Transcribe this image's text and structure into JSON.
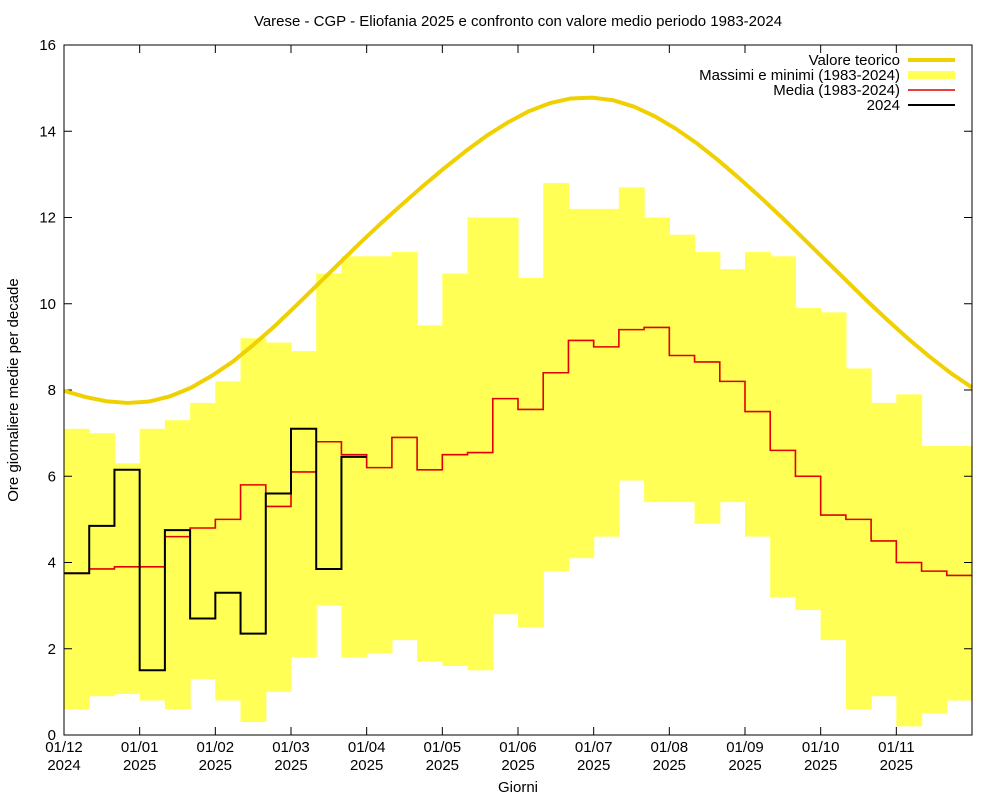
{
  "chart_data": {
    "type": "line",
    "title": "Varese - CGP - Eliofania 2025 e confronto con valore medio periodo 1983-2024",
    "xlabel": "Giorni",
    "ylabel": "Ore giornaliere medie per decade",
    "ylim": [
      0,
      16
    ],
    "yticks": [
      0,
      2,
      4,
      6,
      8,
      10,
      12,
      14,
      16
    ],
    "xticks": [
      {
        "line1": "01/12",
        "line2": "2024"
      },
      {
        "line1": "01/01",
        "line2": "2025"
      },
      {
        "line1": "01/02",
        "line2": "2025"
      },
      {
        "line1": "01/03",
        "line2": "2025"
      },
      {
        "line1": "01/04",
        "line2": "2025"
      },
      {
        "line1": "01/05",
        "line2": "2025"
      },
      {
        "line1": "01/06",
        "line2": "2025"
      },
      {
        "line1": "01/07",
        "line2": "2025"
      },
      {
        "line1": "01/08",
        "line2": "2025"
      },
      {
        "line1": "01/09",
        "line2": "2025"
      },
      {
        "line1": "01/10",
        "line2": "2025"
      },
      {
        "line1": "01/11",
        "line2": "2025"
      }
    ],
    "legend_position": "top-right",
    "decade_count": 36,
    "series": [
      {
        "name": "Valore teorico",
        "kind": "curve",
        "color": "#f0d000",
        "values": [
          7.98,
          7.84,
          7.74,
          7.7,
          7.73,
          7.85,
          8.05,
          8.33,
          8.66,
          9.06,
          9.49,
          9.96,
          10.44,
          10.92,
          11.4,
          11.86,
          12.3,
          12.73,
          13.14,
          13.53,
          13.89,
          14.2,
          14.46,
          14.65,
          14.76,
          14.78,
          14.72,
          14.57,
          14.34,
          14.05,
          13.71,
          13.32,
          12.9,
          12.46,
          12.0,
          11.52,
          11.04,
          10.56,
          10.08,
          9.62,
          9.18,
          8.77,
          8.39,
          8.06
        ]
      },
      {
        "name": "Massimi e minimi (1983-2024)",
        "kind": "band",
        "color": "#ffff55",
        "max": [
          7.1,
          7.0,
          6.3,
          7.1,
          7.3,
          7.7,
          8.2,
          9.2,
          9.1,
          8.9,
          10.7,
          11.1,
          11.1,
          11.2,
          9.5,
          10.7,
          12.0,
          12.0,
          10.6,
          12.8,
          12.2,
          12.2,
          12.7,
          12.0,
          11.6,
          11.2,
          10.8,
          11.2,
          11.1,
          9.9,
          9.8,
          8.5,
          7.7,
          7.9,
          6.7,
          6.7
        ],
        "min": [
          0.6,
          0.9,
          0.95,
          0.8,
          0.6,
          1.3,
          0.8,
          0.3,
          1.0,
          1.8,
          3.0,
          1.8,
          1.9,
          2.2,
          1.7,
          1.6,
          1.5,
          2.8,
          2.5,
          3.8,
          4.1,
          4.6,
          5.9,
          5.4,
          5.4,
          4.9,
          5.4,
          4.6,
          3.2,
          2.9,
          2.2,
          0.6,
          0.9,
          0.2,
          0.5,
          0.8
        ]
      },
      {
        "name": "Media (1983-2024)",
        "kind": "step",
        "color": "#e00000",
        "values": [
          3.75,
          3.85,
          3.9,
          3.9,
          4.6,
          4.8,
          5.0,
          5.8,
          5.3,
          6.1,
          6.8,
          6.5,
          6.2,
          6.9,
          6.15,
          6.5,
          6.55,
          7.8,
          7.55,
          8.4,
          9.15,
          9.0,
          9.4,
          9.45,
          8.8,
          8.65,
          8.2,
          7.5,
          6.6,
          6.0,
          5.1,
          5.0,
          4.5,
          4.0,
          3.8,
          3.7
        ]
      },
      {
        "name": "2024",
        "kind": "step",
        "color": "#000000",
        "values": [
          3.75,
          4.85,
          6.15,
          1.5,
          4.75,
          2.7,
          3.3,
          2.35,
          5.6,
          7.1,
          3.85,
          6.45
        ]
      }
    ]
  }
}
